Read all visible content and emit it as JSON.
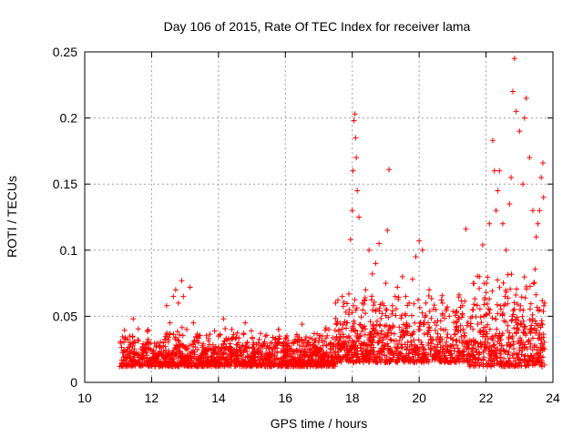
{
  "chart_data": {
    "type": "scatter",
    "title": "Day 106 of 2015, Rate Of TEC Index for receiver lama",
    "xlabel": "GPS time / hours",
    "ylabel": "ROTI / TECUs",
    "xlim": [
      10,
      24
    ],
    "ylim": [
      0,
      0.25
    ],
    "x_ticks": [
      10,
      12,
      14,
      16,
      18,
      20,
      22,
      24
    ],
    "y_ticks": [
      0,
      0.05,
      0.1,
      0.15,
      0.2,
      0.25
    ],
    "x_tick_labels": [
      "10",
      "12",
      "14",
      "16",
      "18",
      "20",
      "22",
      "24"
    ],
    "y_tick_labels": [
      "0",
      "0.05",
      "0.1",
      "0.15",
      "0.2",
      "0.25"
    ],
    "grid": true,
    "marker": "+",
    "color": "#ff0000",
    "series": [
      {
        "x": [
          11.05,
          11.2,
          11.35,
          11.45,
          11.5,
          11.6,
          11.8,
          11.9,
          12.0,
          12.1,
          12.2,
          12.35,
          12.45,
          12.55,
          12.65,
          12.72,
          12.8,
          12.9,
          12.95,
          13.05,
          13.15,
          13.25,
          13.4,
          13.6,
          13.8,
          14.0,
          14.15,
          14.25,
          14.4,
          14.6,
          14.8,
          15.0,
          15.2,
          15.4,
          15.6,
          15.8,
          16.0,
          16.2,
          16.35,
          16.5,
          16.7,
          16.9,
          17.1,
          17.3,
          17.5,
          17.7,
          17.85,
          17.95,
          18.0,
          18.02,
          18.05,
          18.08,
          18.1,
          18.12,
          18.15,
          18.2,
          18.3,
          18.4,
          18.5,
          18.6,
          18.7,
          18.8,
          18.9,
          19.0,
          19.05,
          19.1,
          19.2,
          19.35,
          19.5,
          19.6,
          19.7,
          19.8,
          19.9,
          20.0,
          20.1,
          20.2,
          20.3,
          20.5,
          20.7,
          20.9,
          21.1,
          21.3,
          21.4,
          21.6,
          21.8,
          21.9,
          22.0,
          22.1,
          22.2,
          22.25,
          22.3,
          22.35,
          22.4,
          22.5,
          22.6,
          22.7,
          22.75,
          22.8,
          22.85,
          22.9,
          23.0,
          23.1,
          23.15,
          23.2,
          23.3,
          23.4,
          23.5,
          23.55,
          23.6,
          23.65,
          23.7,
          23.72,
          23.75
        ],
        "y": [
          0.012,
          0.02,
          0.035,
          0.048,
          0.03,
          0.022,
          0.025,
          0.03,
          0.018,
          0.015,
          0.022,
          0.03,
          0.058,
          0.045,
          0.065,
          0.07,
          0.06,
          0.077,
          0.065,
          0.04,
          0.072,
          0.045,
          0.03,
          0.025,
          0.02,
          0.035,
          0.048,
          0.032,
          0.04,
          0.03,
          0.045,
          0.02,
          0.022,
          0.035,
          0.03,
          0.04,
          0.015,
          0.03,
          0.035,
          0.044,
          0.03,
          0.025,
          0.035,
          0.04,
          0.06,
          0.065,
          0.045,
          0.108,
          0.13,
          0.16,
          0.198,
          0.203,
          0.185,
          0.17,
          0.145,
          0.125,
          0.06,
          0.07,
          0.1,
          0.082,
          0.09,
          0.105,
          0.06,
          0.075,
          0.115,
          0.161,
          0.058,
          0.072,
          0.08,
          0.065,
          0.06,
          0.078,
          0.095,
          0.107,
          0.1,
          0.06,
          0.07,
          0.055,
          0.06,
          0.05,
          0.045,
          0.058,
          0.116,
          0.055,
          0.08,
          0.104,
          0.068,
          0.12,
          0.183,
          0.16,
          0.13,
          0.145,
          0.16,
          0.12,
          0.1,
          0.135,
          0.155,
          0.22,
          0.245,
          0.205,
          0.19,
          0.15,
          0.2,
          0.215,
          0.17,
          0.13,
          0.11,
          0.12,
          0.13,
          0.155,
          0.166,
          0.14,
          0.06
        ]
      }
    ]
  }
}
